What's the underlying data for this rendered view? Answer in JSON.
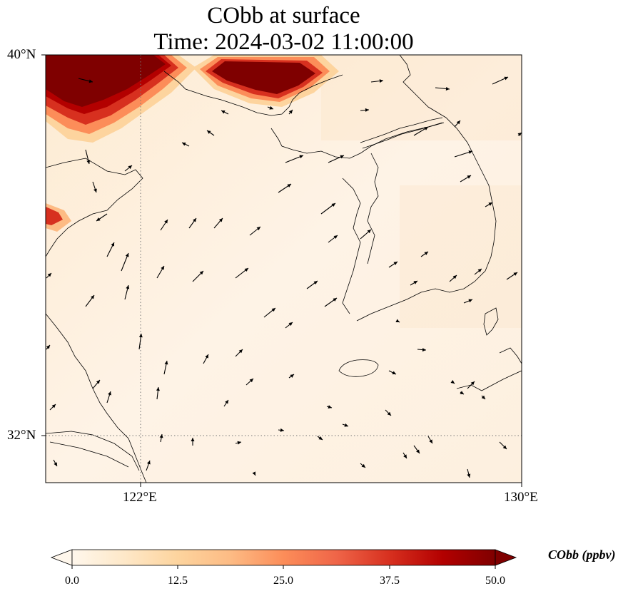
{
  "title": {
    "line1": "CObb at surface",
    "line2": "Time: 2024-03-02 11:00:00"
  },
  "axes": {
    "lat_ticks": [
      "40°N",
      "32°N"
    ],
    "lon_ticks": [
      "122°E",
      "130°E"
    ],
    "lat_range": [
      31,
      40
    ],
    "lon_range": [
      120,
      130
    ]
  },
  "colorbar": {
    "label": "CObb (ppbv)",
    "ticks": [
      "0.0",
      "12.5",
      "25.0",
      "37.5",
      "50.0"
    ],
    "range": [
      0,
      50
    ],
    "extend": "both",
    "colormap": "OrRd",
    "colors": [
      "#fff7ec",
      "#fee8c8",
      "#fdd49e",
      "#fdbb84",
      "#fc8d59",
      "#ef6548",
      "#d7301f",
      "#b30000",
      "#7f0000"
    ]
  },
  "map": {
    "field": "CObb",
    "level": "surface",
    "gridlines": "dotted at 122°E and 32°N",
    "high_regions": [
      "northwest corner near 40°N 120–122°E",
      "north edge near 39.5°N 123.5–125.5°E",
      "small patch near 37°N 120°E"
    ],
    "background_level_ppbv": 1
  }
}
